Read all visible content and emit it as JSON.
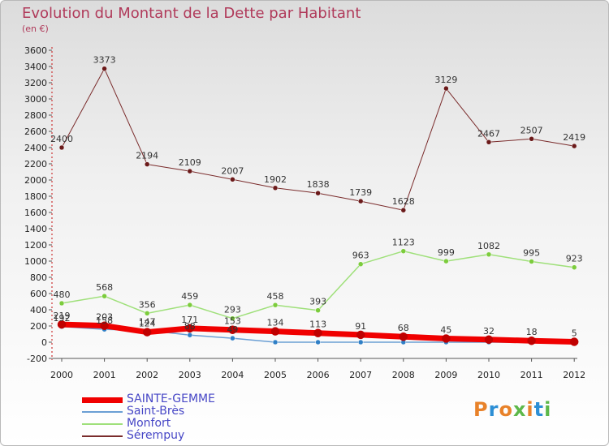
{
  "header": {
    "title": "Evolution du Montant de la Dette par Habitant",
    "unit": "(en €)"
  },
  "logo": {
    "text": "Proxiti",
    "colors": [
      "#e8822a",
      "#2d8fd5",
      "#e8822a",
      "#5db84a",
      "#e8822a",
      "#2d8fd5",
      "#5db84a"
    ]
  },
  "chart_data": {
    "type": "line",
    "title": "Evolution du Montant de la Dette par Habitant",
    "ylabel": "(en €)",
    "xlabel": "",
    "ylim": [
      -200,
      3600
    ],
    "yticks": [
      -200,
      0,
      200,
      400,
      600,
      800,
      1000,
      1200,
      1400,
      1600,
      1800,
      2000,
      2200,
      2400,
      2600,
      2800,
      3000,
      3200,
      3400,
      3600
    ],
    "x": [
      "2000",
      "2001",
      "2002",
      "2003",
      "2004",
      "2005",
      "2006",
      "2007",
      "2008",
      "2009",
      "2010",
      "2011",
      "2012"
    ],
    "grid": false,
    "legend_position": "bottom-left",
    "series": [
      {
        "name": "Sérempuy",
        "color": "#7a2b2b",
        "marker": "#6b1a1a",
        "width": 1,
        "labels": true,
        "values": [
          2400,
          3373,
          2194,
          2109,
          2007,
          1902,
          1838,
          1739,
          1628,
          3129,
          2467,
          2507,
          2419
        ]
      },
      {
        "name": "Monfort",
        "color": "#9fe07a",
        "marker": "#7ccc3c",
        "width": 1.5,
        "labels": true,
        "values": [
          480,
          568,
          356,
          459,
          293,
          458,
          393,
          963,
          1123,
          999,
          1082,
          995,
          923
        ]
      },
      {
        "name": "Saint-Brès",
        "color": "#6b9fd4",
        "marker": "#2f7fc6",
        "width": 1.5,
        "labels": true,
        "values": [
          192,
          158,
          147,
          88,
          49,
          0,
          0,
          0,
          0,
          0,
          0,
          0,
          0
        ],
        "label_texts": [
          "192",
          "158",
          "147",
          "88",
          "49",
          "",
          "",
          "",
          "",
          "",
          "",
          "",
          ""
        ]
      },
      {
        "name": "SAINTE-GEMME",
        "color": "#f00000",
        "marker": "#c00000",
        "width": 7,
        "labels": true,
        "values": [
          219,
          203,
          124,
          171,
          153,
          134,
          113,
          91,
          68,
          45,
          32,
          18,
          5
        ]
      }
    ]
  }
}
